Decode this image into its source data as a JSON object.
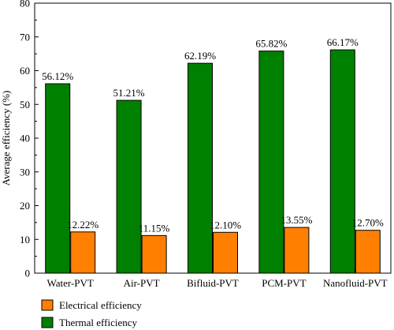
{
  "chart_data": {
    "type": "bar",
    "title": "",
    "xlabel": "",
    "ylabel": "Average efficiency (%)",
    "ylim": [
      0,
      80
    ],
    "yticks": [
      0,
      10,
      20,
      30,
      40,
      50,
      60,
      70,
      80
    ],
    "categories": [
      "Water-PVT",
      "Air-PVT",
      "Bifluid-PVT",
      "PCM-PVT",
      "Nanofluid-PVT"
    ],
    "series": [
      {
        "name": "Thermal efficiency",
        "color": "#008000",
        "values": [
          56.12,
          51.21,
          62.19,
          65.82,
          66.17
        ],
        "labels": [
          "56.12%",
          "51.21%",
          "62.19%",
          "65.82%",
          "66.17%"
        ]
      },
      {
        "name": "Electrical efficiency",
        "color": "#ff8000",
        "values": [
          12.22,
          11.15,
          12.1,
          13.55,
          12.7
        ],
        "labels": [
          "12.22%",
          "11.15%",
          "12.10%",
          "13.55%",
          "12.70%"
        ]
      }
    ],
    "legend": {
      "position": "bottom-left",
      "entries": [
        {
          "label": "Electrical efficiency",
          "color": "#ff8000"
        },
        {
          "label": "Thermal efficiency",
          "color": "#008000"
        }
      ]
    },
    "grid": false
  }
}
